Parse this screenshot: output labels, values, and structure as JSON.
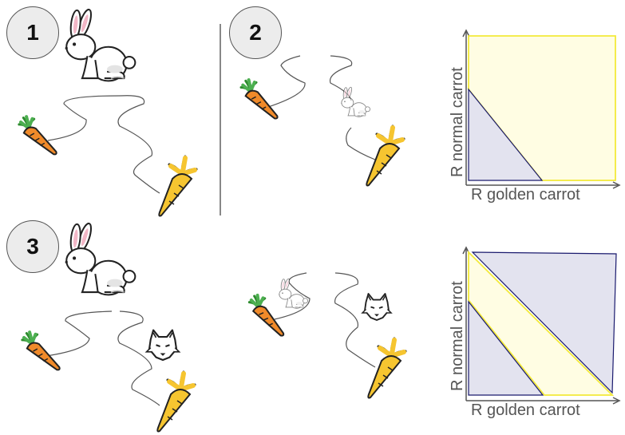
{
  "panels": [
    {
      "label": "1"
    },
    {
      "label": "2"
    },
    {
      "label": "3"
    }
  ],
  "plots": [
    {
      "xlabel": "R golden carrot",
      "ylabel": "R normal carrot"
    },
    {
      "xlabel": "R golden carrot",
      "ylabel": "R normal carrot"
    }
  ],
  "colors": {
    "region_blue": "#e3e3ef",
    "region_yellow": "#fffde3",
    "yellow_edge": "#f3ea3a",
    "navy_edge": "#1a1a6e",
    "carrot_orange": "#f08a2a",
    "carrot_gold": "#f6c530"
  },
  "icons": [
    "rabbit-icon",
    "carrot-icon",
    "golden-carrot-icon",
    "wolf-icon"
  ]
}
